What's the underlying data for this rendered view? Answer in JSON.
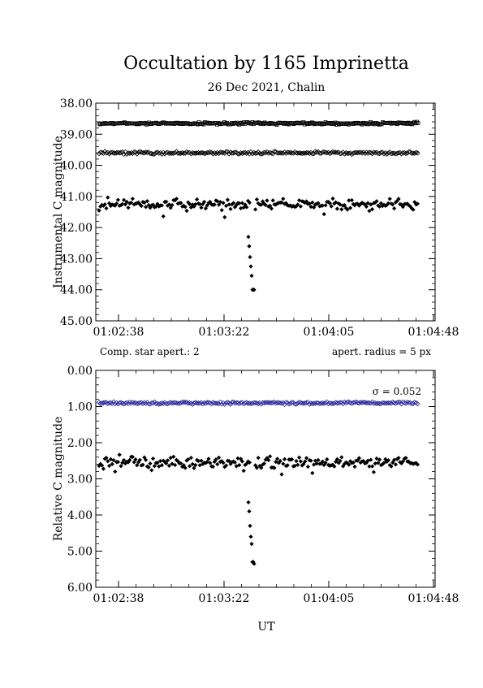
{
  "chart_data": {
    "title": "Occultation by 1165 Imprinetta",
    "subtitle": "26 Dec 2021, Chalin",
    "xlabel": "UT",
    "x_tick_labels": [
      "01:02:38",
      "01:03:22",
      "01:04:05",
      "01:04:48"
    ],
    "panels": [
      {
        "type": "scatter",
        "ylabel": "Instrumental C magnitude",
        "ylim": [
          38.0,
          45.0
        ],
        "y_inverted": true,
        "y_tick_labels": [
          "38.00",
          "39.00",
          "40.00",
          "41.00",
          "42.00",
          "43.00",
          "44.00",
          "45.00"
        ],
        "y_ticks": [
          38,
          39,
          40,
          41,
          42,
          43,
          44,
          45
        ],
        "series": [
          {
            "marker": "open-square",
            "level": 38.65,
            "scatter": 0.05
          },
          {
            "marker": "open-diamond",
            "level": 39.6,
            "scatter": 0.06
          },
          {
            "marker": "filled-diamond",
            "level": 41.25,
            "scatter": 0.25
          }
        ],
        "event": {
          "level": 44.0,
          "depth_values": [
            42.3,
            42.6,
            42.95,
            43.25,
            43.55,
            44.0,
            44.0,
            44.0
          ]
        },
        "left_note": "Comp. star apert.: 2",
        "right_note": "apert. radius = 5 px"
      },
      {
        "type": "scatter",
        "ylabel": "Relative C magnitude",
        "ylim": [
          0.0,
          6.0
        ],
        "y_inverted": true,
        "y_tick_labels": [
          "0.00",
          "1.00",
          "2.00",
          "3.00",
          "4.00",
          "5.00",
          "6.00"
        ],
        "y_ticks": [
          0,
          1,
          2,
          3,
          4,
          5,
          6
        ],
        "series": [
          {
            "marker": "open-diamond-blue",
            "level": 0.9,
            "scatter": 0.05
          },
          {
            "marker": "filled-diamond",
            "level": 2.55,
            "scatter": 0.22
          }
        ],
        "event": {
          "level": 5.3,
          "depth_values": [
            3.65,
            3.9,
            4.3,
            4.6,
            4.8,
            5.3,
            5.3,
            5.35
          ]
        },
        "sigma_label": "σ = 0.052"
      }
    ]
  },
  "colors": {
    "series_main": "#000000",
    "comparison_blue": "#2a2a9a"
  }
}
